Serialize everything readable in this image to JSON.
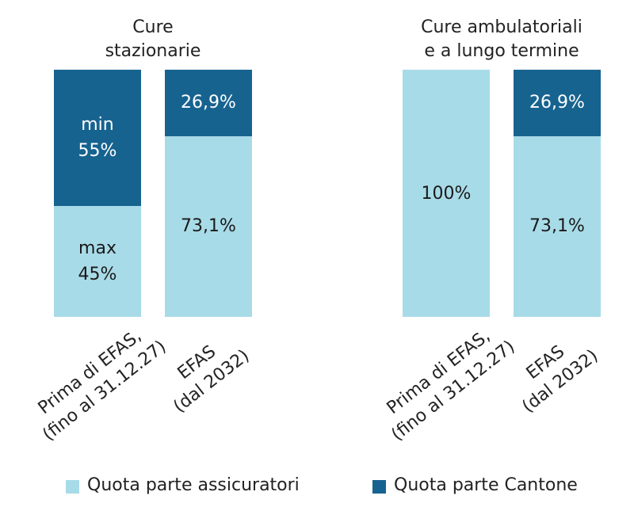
{
  "chart_data": {
    "type": "bar",
    "stacked": true,
    "ylim": [
      0,
      100
    ],
    "series": [
      {
        "name": "Quota parte assicuratori",
        "color": "#a8dbe8",
        "text_color": "#1a1a1a"
      },
      {
        "name": "Quota parte Cantone",
        "color": "#176390",
        "text_color": "#ffffff"
      }
    ],
    "panels": [
      {
        "title": "Cure\nstazionarie",
        "categories": [
          "Prima di EFAS,\n(fino al 31.12.27)",
          "EFAS\n(dal 2032)"
        ],
        "values": [
          [
            45,
            73.1
          ],
          [
            55,
            26.9
          ]
        ],
        "value_labels": [
          [
            "max\n45%",
            "73,1%"
          ],
          [
            "min\n55%",
            "26,9%"
          ]
        ]
      },
      {
        "title": "Cure ambulatoriali\ne a lungo termine",
        "categories": [
          "Prima di EFAS,\n(fino al 31.12.27)",
          "EFAS\n(dal 2032)"
        ],
        "values": [
          [
            100,
            73.1
          ],
          [
            null,
            26.9
          ]
        ],
        "value_labels": [
          [
            "100%",
            "73,1%"
          ],
          [
            null,
            "26,9%"
          ]
        ]
      }
    ]
  }
}
